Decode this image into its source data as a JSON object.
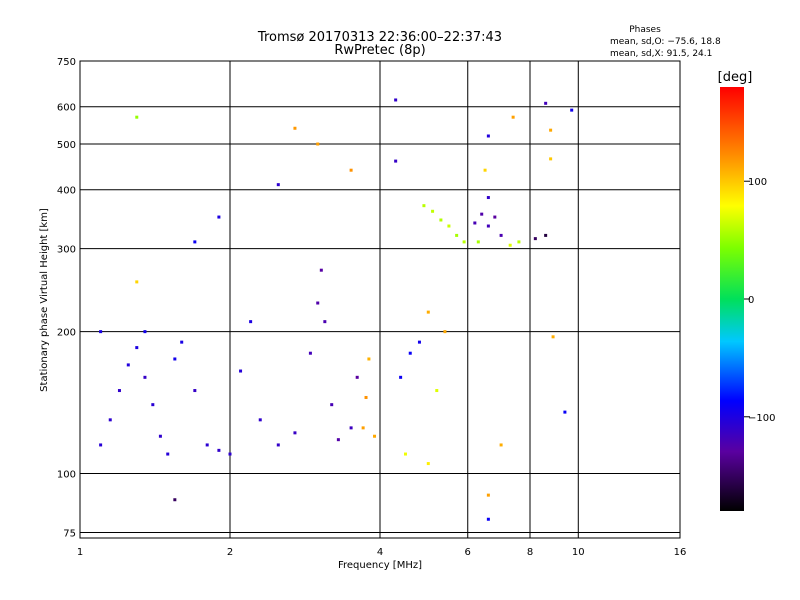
{
  "chart_data": {
    "type": "scatter",
    "title": "Tromsø 20170313 22:36:00–22:37:43",
    "subtitle": "RwPretec (8p)",
    "xlabel": "Frequency [MHz]",
    "ylabel": "Stationary phase Virtual Height [km]",
    "x_scale": "log",
    "y_scale": "log",
    "xlim": [
      1,
      16
    ],
    "ylim": [
      73,
      750
    ],
    "x_ticks": [
      1,
      2,
      4,
      6,
      8,
      10,
      16
    ],
    "x_tick_labels": [
      "1",
      "2",
      "4",
      "6",
      "8",
      "10",
      "16"
    ],
    "y_ticks": [
      75,
      100,
      200,
      300,
      400,
      500,
      600,
      750
    ],
    "y_tick_labels": [
      "75",
      "100",
      "200",
      "300",
      "400",
      "500",
      "600",
      "750"
    ],
    "grid": true,
    "stats": {
      "heading": "Phases",
      "line1": "mean, sd,O: −75.6, 18.8",
      "line2": "mean, sd,X:  91.5, 24.1"
    },
    "colorbar": {
      "label": "[deg]",
      "range": [
        -180,
        180
      ],
      "ticks": [
        100,
        0,
        -100
      ],
      "tick_labels": [
        "100",
        "0",
        "−100"
      ]
    },
    "series": [
      {
        "points": [
          [
            1.1,
            115,
            -105
          ],
          [
            1.15,
            130,
            -108
          ],
          [
            1.2,
            150,
            -110
          ],
          [
            1.25,
            170,
            -102
          ],
          [
            1.3,
            185,
            -100
          ],
          [
            1.35,
            160,
            -112
          ],
          [
            1.4,
            140,
            -106
          ],
          [
            1.45,
            120,
            -109
          ],
          [
            1.5,
            110,
            -104
          ],
          [
            1.55,
            175,
            -95
          ],
          [
            1.6,
            190,
            -98
          ],
          [
            1.7,
            150,
            -112
          ],
          [
            1.8,
            115,
            -107
          ],
          [
            1.9,
            112,
            -110
          ],
          [
            2.0,
            110,
            -108
          ],
          [
            2.1,
            165,
            -104
          ],
          [
            2.2,
            210,
            -100
          ],
          [
            2.3,
            130,
            -109
          ],
          [
            2.5,
            115,
            -111
          ],
          [
            2.7,
            122,
            -113
          ],
          [
            2.9,
            180,
            -118
          ],
          [
            3.0,
            230,
            -125
          ],
          [
            3.05,
            270,
            -128
          ],
          [
            3.1,
            210,
            -122
          ],
          [
            3.2,
            140,
            -120
          ],
          [
            3.3,
            118,
            -126
          ],
          [
            3.5,
            125,
            -115
          ],
          [
            3.6,
            160,
            -130
          ],
          [
            3.7,
            125,
            115
          ],
          [
            3.75,
            145,
            120
          ],
          [
            3.8,
            175,
            108
          ],
          [
            3.9,
            120,
            112
          ],
          [
            4.4,
            160,
            -92
          ],
          [
            4.6,
            180,
            -90
          ],
          [
            4.8,
            190,
            -95
          ],
          [
            5.0,
            220,
            110
          ],
          [
            5.2,
            150,
            70
          ],
          [
            5.4,
            200,
            112
          ],
          [
            4.9,
            370,
            60
          ],
          [
            5.1,
            360,
            62
          ],
          [
            5.3,
            345,
            58
          ],
          [
            5.5,
            335,
            65
          ],
          [
            5.7,
            320,
            55
          ],
          [
            5.9,
            310,
            60
          ],
          [
            6.2,
            340,
            -120
          ],
          [
            6.4,
            355,
            -125
          ],
          [
            6.6,
            335,
            -118
          ],
          [
            6.8,
            350,
            -130
          ],
          [
            7.0,
            320,
            -122
          ],
          [
            6.3,
            310,
            55
          ],
          [
            7.3,
            305,
            70
          ],
          [
            7.6,
            310,
            60
          ],
          [
            8.2,
            315,
            -150
          ],
          [
            8.6,
            320,
            -160
          ],
          [
            1.35,
            200,
            -95
          ],
          [
            1.7,
            310,
            -92
          ],
          [
            1.9,
            350,
            -100
          ],
          [
            2.5,
            410,
            -108
          ],
          [
            2.7,
            540,
            118
          ],
          [
            3.0,
            500,
            115
          ],
          [
            3.5,
            440,
            120
          ],
          [
            4.3,
            620,
            -110
          ],
          [
            4.3,
            460,
            -112
          ],
          [
            6.6,
            520,
            -102
          ],
          [
            7.4,
            570,
            115
          ],
          [
            8.6,
            610,
            -118
          ],
          [
            8.8,
            535,
            112
          ],
          [
            8.8,
            465,
            100
          ],
          [
            9.7,
            590,
            -95
          ],
          [
            1.3,
            570,
            50
          ],
          [
            1.3,
            255,
            95
          ],
          [
            6.5,
            440,
            95
          ],
          [
            6.6,
            385,
            -110
          ],
          [
            7.0,
            115,
            110
          ],
          [
            6.6,
            90,
            115
          ],
          [
            6.6,
            80,
            -90
          ],
          [
            8.9,
            195,
            110
          ],
          [
            9.4,
            135,
            -90
          ],
          [
            5.0,
            105,
            85
          ],
          [
            4.5,
            110,
            75
          ],
          [
            1.55,
            88,
            -150
          ],
          [
            1.1,
            200,
            -98
          ]
        ]
      }
    ]
  }
}
